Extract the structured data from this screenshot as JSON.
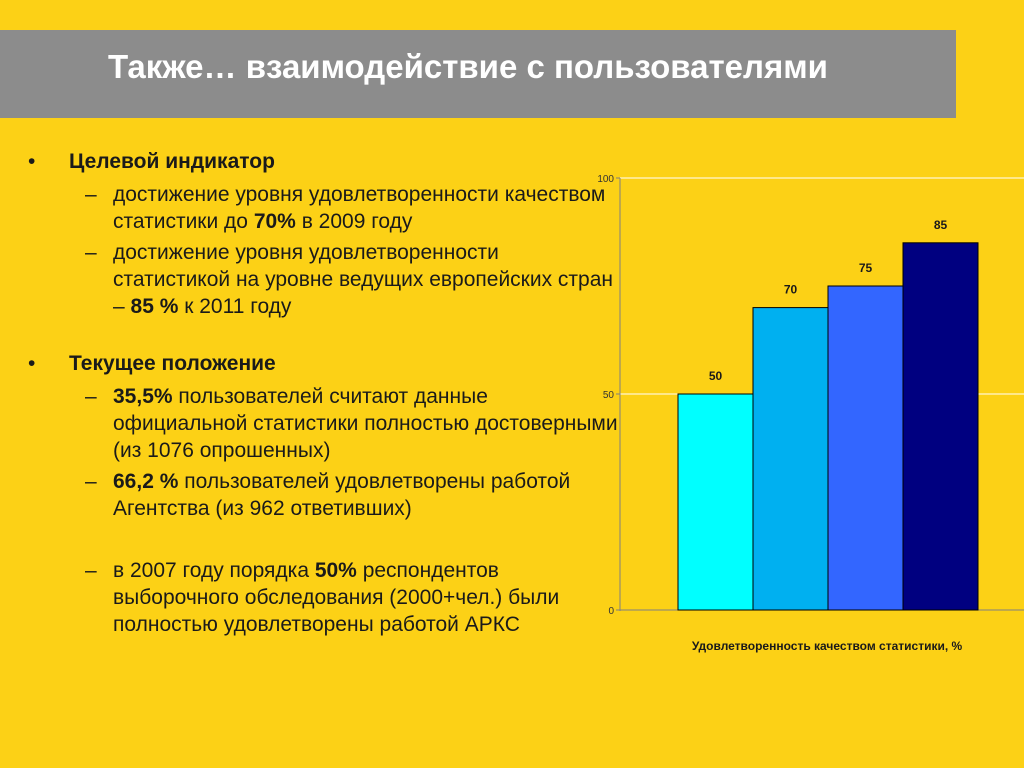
{
  "slide": {
    "title": "Также… взаимодействие с пользователями"
  },
  "sections": [
    {
      "heading": "Целевой индикатор",
      "items": [
        [
          {
            "t": "достижение уровня удовлетворенности качеством статистики до "
          },
          {
            "t": "70%",
            "b": true
          },
          {
            "t": " в 2009 году"
          }
        ],
        [
          {
            "t": "достижение уровня удовлетворенности статистикой на уровне ведущих европейских стран – "
          },
          {
            "t": "85 %",
            "b": true
          },
          {
            "t": " к 2011 году"
          }
        ]
      ]
    },
    {
      "heading": "Текущее положение",
      "items": [
        [
          {
            "t": "35,5%",
            "b": true
          },
          {
            "t": " пользователей считают данные официальной статистики полностью достоверными (из 1076 опрошенных)"
          }
        ],
        [
          {
            "t": "66,2 %",
            "b": true
          },
          {
            "t": " пользователей удовлетворены работой Агентства (из 962 ответивших)"
          }
        ],
        [
          {
            "t": "в 2007 году порядка "
          },
          {
            "t": "50%",
            "b": true
          },
          {
            "t": " респондентов выборочного обследования (2000+чел.) были полностью удовлетворены работой АРКС"
          }
        ]
      ]
    }
  ],
  "bullet_marks": {
    "level1": "•",
    "level2": "–"
  },
  "chart_data": {
    "type": "bar",
    "categories": [
      "",
      "",
      "",
      ""
    ],
    "values": [
      50,
      70,
      75,
      85
    ],
    "data_labels": [
      "50",
      "70",
      "75",
      "85"
    ],
    "colors": [
      "#00FFFF",
      "#00B0F0",
      "#3366FF",
      "#000080"
    ],
    "ylim": [
      0,
      100
    ],
    "yticks": [
      0,
      50,
      100
    ],
    "gridlines": [
      50,
      100
    ],
    "grid": true,
    "legend": "none",
    "title": "",
    "xlabel": "Удовлетворенность качеством статистики, %",
    "ylabel": ""
  }
}
